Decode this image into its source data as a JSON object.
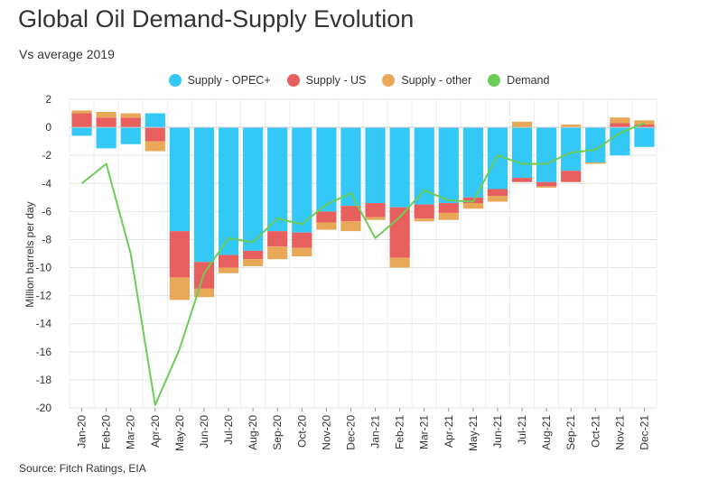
{
  "title": "Global Oil Demand-Supply Evolution",
  "subtitle": "Vs average 2019",
  "source": "Source: Fitch Ratings, EIA",
  "colors": {
    "opec": "#33c8f5",
    "us": "#e8605e",
    "other": "#e8a857",
    "demand": "#6dcc57"
  },
  "legend": [
    {
      "label": "Supply - OPEC+",
      "color": "#33c8f5"
    },
    {
      "label": "Supply - US",
      "color": "#e8605e"
    },
    {
      "label": "Supply - other",
      "color": "#e8a857"
    },
    {
      "label": "Demand",
      "color": "#6dcc57"
    }
  ],
  "chart_data": {
    "type": "bar",
    "stacked": true,
    "ylabel": "Million barrels per day",
    "ylim": [
      -20,
      2
    ],
    "yticks": [
      2,
      0,
      -2,
      -4,
      -6,
      -8,
      -10,
      -12,
      -14,
      -16,
      -18,
      -20
    ],
    "grid": true,
    "legend_position": "top",
    "categories": [
      "Jan-20",
      "Feb-20",
      "Mar-20",
      "Apr-20",
      "May-20",
      "Jun-20",
      "Jul-20",
      "Aug-20",
      "Sep-20",
      "Oct-20",
      "Nov-20",
      "Dec-20",
      "Jan-21",
      "Feb-21",
      "Mar-21",
      "Apr-21",
      "May-21",
      "Jun-21",
      "Jul-21",
      "Aug-21",
      "Sep-21",
      "Oct-21",
      "Nov-21",
      "Dec-21"
    ],
    "series": [
      {
        "name": "Supply - OPEC+",
        "type": "bar",
        "values": [
          -0.6,
          -1.5,
          -1.2,
          1.0,
          -7.4,
          -9.6,
          -9.1,
          -8.8,
          -7.4,
          -7.5,
          -6.0,
          -5.6,
          -5.4,
          -5.7,
          -5.5,
          -5.4,
          -5.0,
          -4.4,
          -3.6,
          -3.9,
          -3.1,
          -2.5,
          -2.0,
          -1.4
        ]
      },
      {
        "name": "Supply - US",
        "type": "bar",
        "values": [
          1.0,
          0.7,
          0.7,
          -1.0,
          -3.3,
          -1.9,
          -0.9,
          -0.6,
          -1.1,
          -1.1,
          -0.8,
          -1.1,
          -1.0,
          -3.6,
          -1.0,
          -0.7,
          -0.4,
          -0.5,
          -0.3,
          -0.3,
          -0.8,
          0.0,
          0.3,
          0.2
        ]
      },
      {
        "name": "Supply - other",
        "type": "bar",
        "values": [
          0.2,
          0.4,
          0.3,
          -0.7,
          -1.6,
          -0.6,
          -0.4,
          -0.5,
          -0.9,
          -0.6,
          -0.5,
          -0.7,
          -0.2,
          -0.7,
          -0.2,
          -0.5,
          -0.4,
          -0.4,
          0.4,
          -0.1,
          0.2,
          -0.1,
          0.4,
          0.3
        ]
      },
      {
        "name": "Demand",
        "type": "line",
        "values": [
          -4.0,
          -2.6,
          -9.0,
          -19.8,
          -15.8,
          -10.4,
          -7.9,
          -8.2,
          -6.5,
          -6.9,
          -5.5,
          -4.7,
          -7.9,
          -6.4,
          -4.5,
          -5.2,
          -5.3,
          -2.0,
          -2.6,
          -2.6,
          -1.8,
          -1.6,
          -0.4,
          0.3
        ]
      }
    ]
  }
}
